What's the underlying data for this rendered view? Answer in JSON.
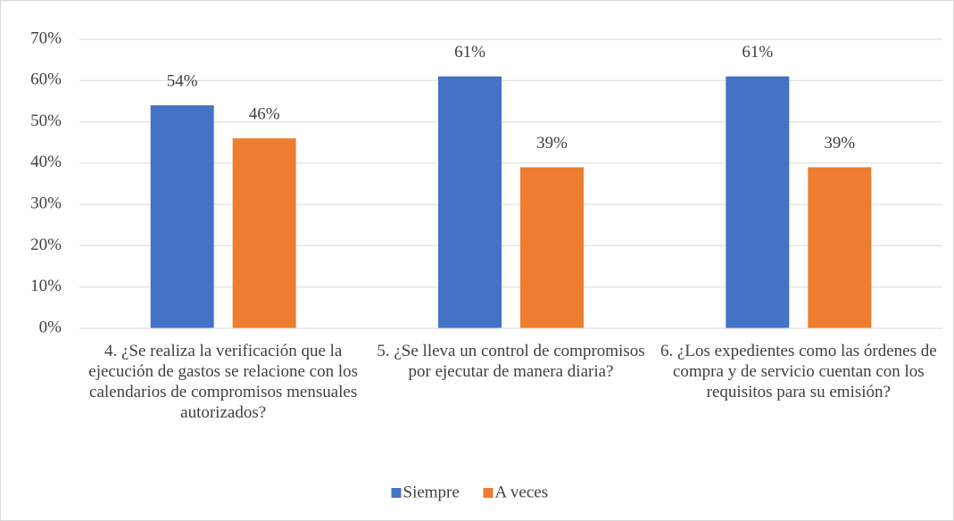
{
  "chart_data": {
    "type": "bar",
    "categories": [
      "4. ¿Se realiza la verificación que la ejecución de gastos se relacione con los calendarios de compromisos mensuales autorizados?",
      "5. ¿Se lleva un control de compromisos por ejecutar de manera diaria?",
      "6. ¿Los expedientes como las órdenes de compra y de servicio cuentan con los requisitos para su emisión?"
    ],
    "series": [
      {
        "name": "Siempre",
        "color": "#4472c4",
        "values": [
          54,
          61,
          61
        ],
        "value_labels": [
          "54%",
          "61%",
          "61%"
        ]
      },
      {
        "name": "A veces",
        "color": "#ed7d31",
        "values": [
          46,
          39,
          39
        ],
        "value_labels": [
          "46%",
          "39%",
          "39%"
        ]
      }
    ],
    "ylim": [
      0,
      70
    ],
    "yticks": [
      {
        "value": 0,
        "label": "0%"
      },
      {
        "value": 10,
        "label": "10%"
      },
      {
        "value": 20,
        "label": "20%"
      },
      {
        "value": 30,
        "label": "30%"
      },
      {
        "value": 40,
        "label": "40%"
      },
      {
        "value": 50,
        "label": "50%"
      },
      {
        "value": 60,
        "label": "60%"
      },
      {
        "value": 70,
        "label": "70%"
      }
    ],
    "grid": true,
    "legend": "bottom"
  }
}
